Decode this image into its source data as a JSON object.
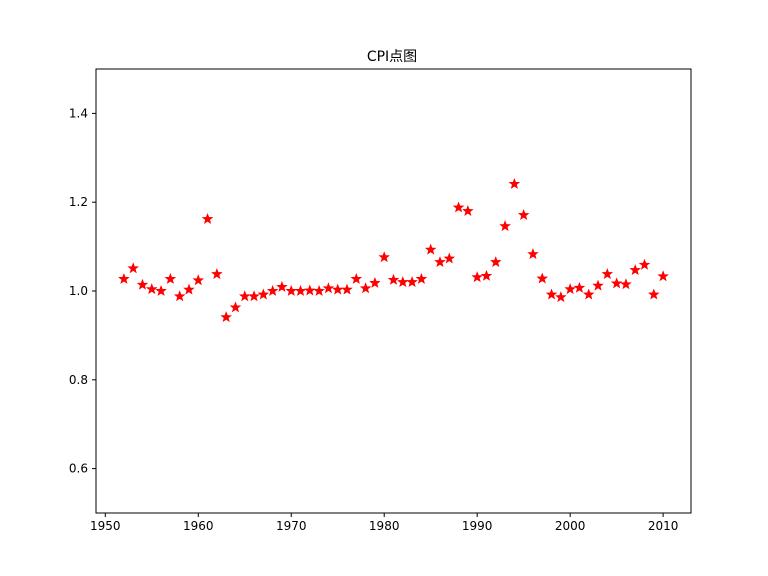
{
  "chart_data": {
    "type": "scatter",
    "title": "CPI点图",
    "xlabel": "",
    "ylabel": "",
    "marker": "star",
    "marker_color": "#ff0000",
    "grid": false,
    "xlim": [
      1949,
      2013
    ],
    "ylim": [
      0.5,
      1.5
    ],
    "xticks": [
      1950,
      1960,
      1970,
      1980,
      1990,
      2000,
      2010
    ],
    "yticks": [
      0.6,
      0.8,
      1.0,
      1.2,
      1.4
    ],
    "xtick_labels": [
      "1950",
      "1960",
      "1970",
      "1980",
      "1990",
      "2000",
      "2010"
    ],
    "ytick_labels": [
      "0.6",
      "0.8",
      "1.0",
      "1.2",
      "1.4"
    ],
    "x": [
      1952,
      1953,
      1954,
      1955,
      1956,
      1957,
      1958,
      1959,
      1960,
      1961,
      1962,
      1963,
      1964,
      1965,
      1966,
      1967,
      1968,
      1969,
      1970,
      1971,
      1972,
      1973,
      1974,
      1975,
      1976,
      1977,
      1978,
      1979,
      1980,
      1981,
      1982,
      1983,
      1984,
      1985,
      1986,
      1987,
      1988,
      1989,
      1990,
      1991,
      1992,
      1993,
      1994,
      1995,
      1996,
      1997,
      1998,
      1999,
      2000,
      2001,
      2002,
      2003,
      2004,
      2005,
      2006,
      2007,
      2008,
      2009,
      2010
    ],
    "y": [
      1.027,
      1.051,
      1.014,
      1.004,
      1.0,
      1.027,
      0.988,
      1.003,
      1.024,
      1.162,
      1.038,
      0.941,
      0.963,
      0.988,
      0.988,
      0.992,
      1.0,
      1.009,
      1.0,
      1.0,
      1.001,
      1.0,
      1.006,
      1.003,
      1.003,
      1.027,
      1.006,
      1.018,
      1.076,
      1.025,
      1.02,
      1.02,
      1.027,
      1.093,
      1.065,
      1.073,
      1.188,
      1.18,
      1.031,
      1.034,
      1.065,
      1.146,
      1.241,
      1.171,
      1.083,
      1.028,
      0.992,
      0.986,
      1.004,
      1.007,
      0.992,
      1.012,
      1.038,
      1.017,
      1.015,
      1.047,
      1.059,
      0.992,
      1.033
    ]
  }
}
